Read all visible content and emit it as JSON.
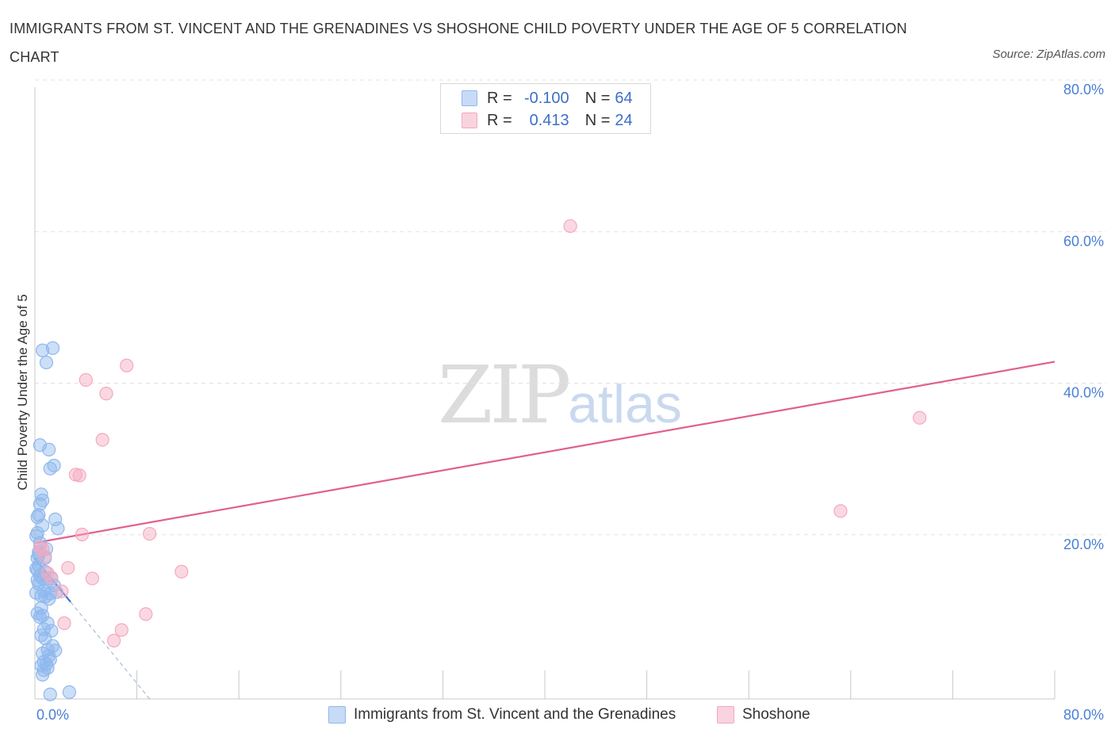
{
  "chart_data": {
    "type": "scatter",
    "title": "IMMIGRANTS FROM ST. VINCENT AND THE GRENADINES VS SHOSHONE CHILD POVERTY UNDER THE AGE OF 5 CORRELATION CHART",
    "source": "Source: ZipAtlas.com",
    "xlabel": "",
    "ylabel": "Child Poverty Under the Age of 5",
    "xlim": [
      0,
      80
    ],
    "ylim": [
      0,
      80
    ],
    "x_tick_labels": [
      "0.0%",
      "80.0%"
    ],
    "y_ticks": [
      20,
      40,
      60,
      80
    ],
    "y_tick_labels": [
      "20.0%",
      "40.0%",
      "60.0%",
      "80.0%"
    ],
    "series": [
      {
        "name": "Immigrants from St. Vincent and the Grenadines",
        "color": "#8fb8ee",
        "line_color": "#3a6fd8",
        "R": "-0.100",
        "N": "64",
        "trend": {
          "x0": 0,
          "y0": 18.5,
          "x1": 2.8,
          "y1": 12.8
        },
        "trend_dashed": {
          "x0": 2.8,
          "y0": 12.8,
          "x1": 9.0,
          "y1": 0
        },
        "points": [
          [
            0.6,
            46.0
          ],
          [
            1.4,
            46.3
          ],
          [
            0.9,
            44.4
          ],
          [
            0.4,
            33.5
          ],
          [
            1.1,
            32.9
          ],
          [
            1.5,
            30.8
          ],
          [
            1.2,
            30.4
          ],
          [
            0.5,
            27.0
          ],
          [
            0.6,
            26.2
          ],
          [
            0.4,
            25.7
          ],
          [
            0.3,
            24.3
          ],
          [
            0.2,
            24.0
          ],
          [
            1.6,
            23.7
          ],
          [
            1.8,
            22.5
          ],
          [
            0.6,
            22.9
          ],
          [
            0.2,
            21.9
          ],
          [
            0.1,
            21.5
          ],
          [
            0.3,
            19.4
          ],
          [
            0.2,
            18.6
          ],
          [
            0.8,
            18.6
          ],
          [
            0.3,
            17.6
          ],
          [
            0.1,
            17.2
          ],
          [
            0.4,
            16.3
          ],
          [
            0.6,
            15.9
          ],
          [
            0.2,
            15.7
          ],
          [
            0.9,
            15.4
          ],
          [
            1.3,
            15.9
          ],
          [
            0.3,
            15.2
          ],
          [
            0.7,
            14.3
          ],
          [
            0.1,
            14.0
          ],
          [
            1.2,
            13.9
          ],
          [
            1.7,
            14.1
          ],
          [
            0.5,
            13.6
          ],
          [
            1.1,
            13.2
          ],
          [
            0.8,
            13.5
          ],
          [
            0.2,
            11.3
          ],
          [
            0.6,
            11.0
          ],
          [
            0.4,
            10.8
          ],
          [
            1.0,
            10.0
          ],
          [
            0.7,
            9.2
          ],
          [
            1.3,
            9.0
          ],
          [
            0.5,
            8.4
          ],
          [
            0.8,
            8.0
          ],
          [
            1.4,
            7.0
          ],
          [
            1.6,
            6.4
          ],
          [
            1.0,
            6.5
          ],
          [
            0.6,
            6.0
          ],
          [
            1.1,
            5.7
          ],
          [
            1.2,
            5.2
          ],
          [
            0.7,
            4.9
          ],
          [
            0.9,
            4.6
          ],
          [
            0.5,
            4.4
          ],
          [
            1.0,
            4.1
          ],
          [
            0.7,
            3.8
          ],
          [
            0.6,
            3.2
          ],
          [
            1.2,
            0.6
          ],
          [
            2.7,
            0.9
          ],
          [
            0.3,
            19.0
          ],
          [
            0.9,
            19.8
          ],
          [
            0.2,
            17.0
          ],
          [
            0.5,
            12.0
          ],
          [
            1.5,
            15.0
          ],
          [
            0.4,
            20.6
          ],
          [
            0.8,
            16.8
          ]
        ]
      },
      {
        "name": "Shoshone",
        "color": "#f4a8bf",
        "line_color": "#e0608f",
        "R": "0.413",
        "N": "24",
        "trend": {
          "x0": 0,
          "y0": 20.6,
          "x1": 80,
          "y1": 44.5
        },
        "points": [
          [
            42.0,
            62.4
          ],
          [
            7.2,
            44.0
          ],
          [
            4.0,
            42.1
          ],
          [
            5.6,
            40.3
          ],
          [
            5.3,
            34.2
          ],
          [
            3.2,
            29.6
          ],
          [
            3.5,
            29.5
          ],
          [
            69.4,
            37.1
          ],
          [
            63.2,
            24.8
          ],
          [
            11.5,
            16.8
          ],
          [
            9.0,
            21.8
          ],
          [
            3.7,
            21.7
          ],
          [
            0.6,
            19.8
          ],
          [
            0.4,
            20.0
          ],
          [
            0.8,
            18.8
          ],
          [
            1.0,
            16.6
          ],
          [
            1.3,
            16.0
          ],
          [
            2.6,
            17.3
          ],
          [
            4.5,
            15.9
          ],
          [
            2.1,
            14.2
          ],
          [
            2.3,
            10.0
          ],
          [
            8.7,
            11.2
          ],
          [
            6.8,
            9.1
          ],
          [
            6.2,
            7.7
          ]
        ]
      }
    ]
  },
  "legend": {
    "r_label": "R =",
    "n_label": "N ="
  },
  "watermark": {
    "zip": "ZIP",
    "atlas": "atlas"
  }
}
